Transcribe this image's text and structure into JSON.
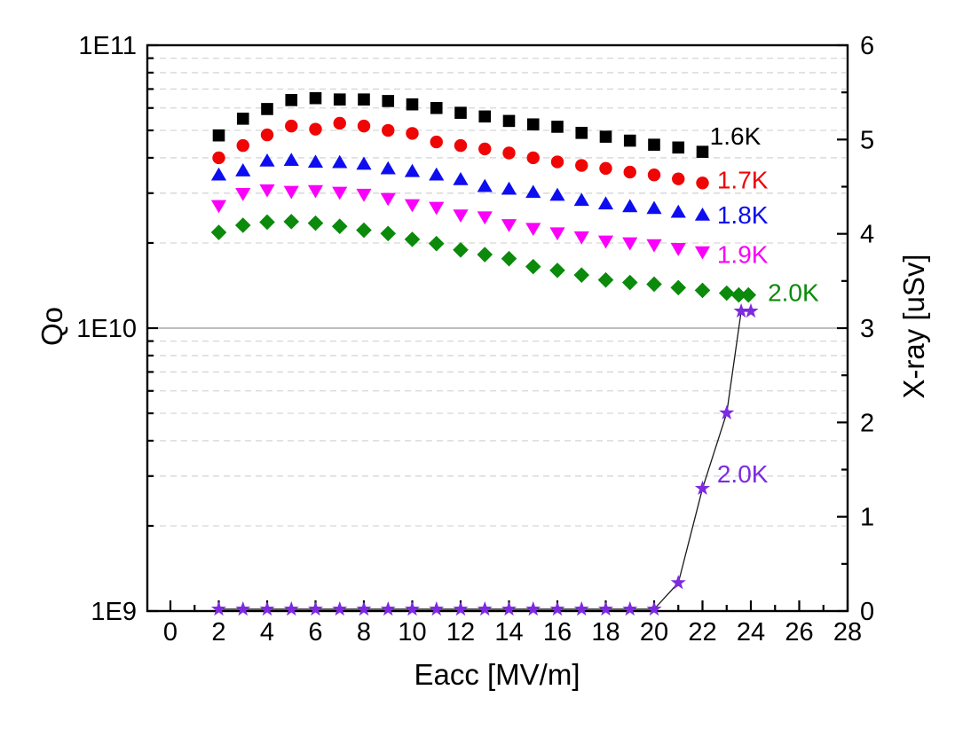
{
  "figure": {
    "background_color": "#ffffff",
    "frame_color": "#000000",
    "grid_minor_color": "#d6d6d6",
    "grid_reference_color": "#a8a8a8"
  },
  "chart_data": {
    "type": "scatter",
    "title": "",
    "xlabel": "Eacc [MV/m]",
    "ylabel": "Qo",
    "ylabel_right": "X-ray [uSv]",
    "x_axis": {
      "min": -1,
      "max": 28,
      "tick_values": [
        0,
        2,
        4,
        6,
        8,
        10,
        12,
        14,
        16,
        18,
        20,
        22,
        24,
        26,
        28
      ],
      "tick_labels": [
        "0",
        "2",
        "4",
        "6",
        "8",
        "10",
        "12",
        "14",
        "16",
        "18",
        "20",
        "22",
        "24",
        "26",
        "28"
      ],
      "minor_tick_values": [
        1,
        3,
        5,
        7,
        9,
        11,
        13,
        15,
        17,
        19,
        21,
        23,
        25,
        27
      ]
    },
    "y_axis": {
      "scale": "log",
      "min": 1000000000.0,
      "max": 100000000000.0,
      "tick_values": [
        1000000000.0,
        10000000000.0,
        100000000000.0
      ],
      "tick_labels": [
        "1E9",
        "1E10",
        "1E11"
      ],
      "minor_grid": "dashed",
      "reference_line_value": 10000000000.0
    },
    "y2_axis": {
      "scale": "linear",
      "min": 0,
      "max": 6,
      "tick_values": [
        0,
        1,
        2,
        3,
        4,
        5,
        6
      ],
      "tick_labels": [
        "0",
        "1",
        "2",
        "3",
        "4",
        "5",
        "6"
      ],
      "minor_tick_step": 0.5
    },
    "series": [
      {
        "id": "qo-1.6K",
        "name": "Qo at 1.6K",
        "marker": "square",
        "color": "#000000",
        "axis": "left",
        "x": [
          2,
          3,
          4,
          5,
          6,
          7,
          8,
          9,
          10,
          11,
          12,
          13,
          14,
          15,
          16,
          17,
          18,
          19,
          20,
          21,
          22
        ],
        "y": [
          48000000000.0,
          55000000000.0,
          59500000000.0,
          64000000000.0,
          65000000000.0,
          64300000000.0,
          64300000000.0,
          63500000000.0,
          61800000000.0,
          60000000000.0,
          57700000000.0,
          56000000000.0,
          54000000000.0,
          52500000000.0,
          51500000000.0,
          49000000000.0,
          47500000000.0,
          46000000000.0,
          44500000000.0,
          43500000000.0,
          42000000000.0
        ]
      },
      {
        "id": "qo-1.7K",
        "name": "Qo at 1.7K",
        "marker": "circle",
        "color": "#f00505",
        "axis": "left",
        "x": [
          2,
          3,
          4,
          5,
          6,
          7,
          8,
          9,
          10,
          11,
          12,
          13,
          14,
          15,
          16,
          17,
          18,
          19,
          20,
          21,
          22
        ],
        "y": [
          40000000000.0,
          44200000000.0,
          48200000000.0,
          51800000000.0,
          50500000000.0,
          53000000000.0,
          51800000000.0,
          50000000000.0,
          48800000000.0,
          45500000000.0,
          44200000000.0,
          43000000000.0,
          41600000000.0,
          40000000000.0,
          38700000000.0,
          37600000000.0,
          36700000000.0,
          35600000000.0,
          34800000000.0,
          33700000000.0,
          32600000000.0
        ]
      },
      {
        "id": "qo-1.8K",
        "name": "Qo at 1.8K",
        "marker": "triangle-up",
        "color": "#0d0df0",
        "axis": "left",
        "x": [
          2,
          3,
          4,
          5,
          6,
          7,
          8,
          9,
          10,
          11,
          12,
          13,
          14,
          15,
          16,
          17,
          18,
          19,
          20,
          21,
          22
        ],
        "y": [
          34800000000.0,
          36000000000.0,
          39000000000.0,
          39200000000.0,
          38600000000.0,
          38500000000.0,
          38000000000.0,
          36600000000.0,
          35800000000.0,
          34800000000.0,
          33500000000.0,
          31700000000.0,
          31000000000.0,
          30200000000.0,
          29500000000.0,
          28300000000.0,
          27500000000.0,
          26900000000.0,
          26500000000.0,
          25700000000.0,
          25100000000.0
        ]
      },
      {
        "id": "qo-1.9K",
        "name": "Qo at 1.9K",
        "marker": "triangle-down",
        "color": "#fa00fa",
        "axis": "left",
        "x": [
          2,
          3,
          4,
          5,
          6,
          7,
          8,
          9,
          10,
          11,
          12,
          13,
          14,
          15,
          16,
          17,
          18,
          19,
          20,
          21,
          22
        ],
        "y": [
          27100000000.0,
          29900000000.0,
          30800000000.0,
          30400000000.0,
          30600000000.0,
          30200000000.0,
          29700000000.0,
          28700000000.0,
          27300000000.0,
          26700000000.0,
          25100000000.0,
          24700000000.0,
          23200000000.0,
          22500000000.0,
          21700000000.0,
          21000000000.0,
          20300000000.0,
          20000000000.0,
          19700000000.0,
          19100000000.0,
          18600000000.0
        ]
      },
      {
        "id": "qo-2.0K",
        "name": "Qo at 2.0K",
        "marker": "diamond",
        "color": "#0b8a0b",
        "axis": "left",
        "x": [
          2,
          3,
          4,
          5,
          6,
          7,
          8,
          9,
          10,
          11,
          12,
          13,
          14,
          15,
          16,
          17,
          18,
          19,
          20,
          21,
          22,
          23,
          23.5,
          23.9
        ],
        "y": [
          21800000000.0,
          23100000000.0,
          23700000000.0,
          23800000000.0,
          23500000000.0,
          22900000000.0,
          22200000000.0,
          21600000000.0,
          20600000000.0,
          19900000000.0,
          18900000000.0,
          18200000000.0,
          17600000000.0,
          16500000000.0,
          16000000000.0,
          15400000000.0,
          14800000000.0,
          14500000000.0,
          14300000000.0,
          13900000000.0,
          13600000000.0,
          13300000000.0,
          13100000000.0,
          13100000000.0
        ]
      },
      {
        "id": "xray-2.0K",
        "name": "X-ray at 2.0K",
        "marker": "star",
        "color": "#7d2ae0",
        "line_color": "#1a1a1a",
        "line": true,
        "axis": "right",
        "x": [
          2,
          3,
          4,
          5,
          6,
          7,
          8,
          9,
          10,
          11,
          12,
          13,
          14,
          15,
          16,
          17,
          18,
          19,
          20,
          21,
          22,
          23,
          23.6,
          24
        ],
        "y": [
          0.02,
          0.02,
          0.02,
          0.02,
          0.02,
          0.02,
          0.02,
          0.02,
          0.02,
          0.02,
          0.02,
          0.02,
          0.02,
          0.02,
          0.02,
          0.02,
          0.02,
          0.02,
          0.02,
          0.3,
          1.3,
          2.1,
          3.18,
          3.18
        ]
      }
    ],
    "annotations": [
      {
        "text": "1.6K",
        "color": "#000000",
        "axis": "left",
        "x": 22.3,
        "y": 47900000000.0
      },
      {
        "text": "1.7K",
        "color": "#f00505",
        "axis": "left",
        "x": 22.6,
        "y": 33500000000.0
      },
      {
        "text": "1.8K",
        "color": "#0d0df0",
        "axis": "left",
        "x": 22.6,
        "y": 25200000000.0
      },
      {
        "text": "1.9K",
        "color": "#fa00fa",
        "axis": "left",
        "x": 22.6,
        "y": 18300000000.0
      },
      {
        "text": "2.0K",
        "color": "#0b8a0b",
        "axis": "left",
        "x": 24.7,
        "y": 13400000000.0
      },
      {
        "text": "2.0K",
        "color": "#7d2ae0",
        "axis": "right",
        "x": 22.6,
        "y": 1.46
      }
    ]
  }
}
